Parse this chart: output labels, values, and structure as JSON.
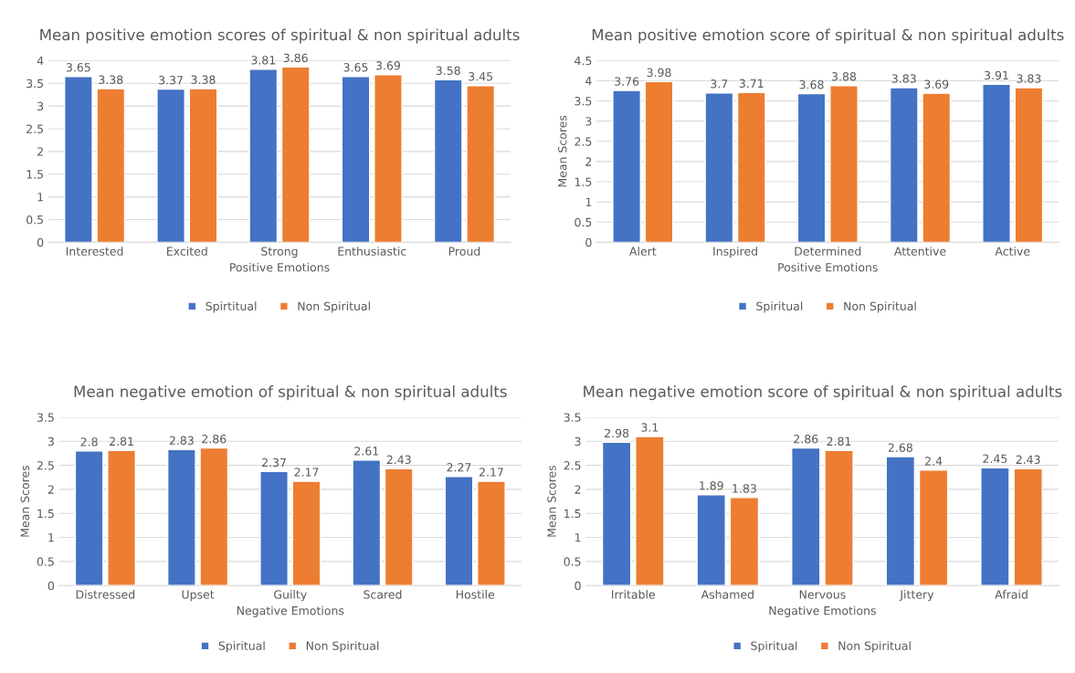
{
  "chart_data": [
    {
      "type": "bar",
      "title": "Mean positive emotion scores of spiritual & non spiritual adults",
      "xlabel": "Positive Emotions",
      "categories": [
        "Interested",
        "Excited",
        "Strong",
        "Enthusiastic",
        "Proud"
      ],
      "series": [
        {
          "name": "Spirtitual",
          "color": "#4472c4",
          "values": [
            3.65,
            3.37,
            3.81,
            3.65,
            3.58
          ]
        },
        {
          "name": "Non Spiritual",
          "color": "#ed7d31",
          "values": [
            3.38,
            3.38,
            3.86,
            3.69,
            3.45
          ]
        }
      ],
      "ylim": [
        0,
        4
      ],
      "yticks": [
        0,
        0.5,
        1,
        1.5,
        2,
        2.5,
        3,
        3.5,
        4
      ],
      "grid": "y",
      "legend": "bottom",
      "data_labels": true
    },
    {
      "type": "bar",
      "title": "Mean positive emotion score of spiritual & non spiritual adults",
      "xlabel": "Positive Emotions",
      "ylabel": "Mean Scores",
      "categories": [
        "Alert",
        "Inspired",
        "Determined",
        "Attentive",
        "Active"
      ],
      "series": [
        {
          "name": "Spiritual",
          "color": "#4472c4",
          "values": [
            3.76,
            3.7,
            3.68,
            3.83,
            3.91
          ]
        },
        {
          "name": "Non Spiritual",
          "color": "#ed7d31",
          "values": [
            3.98,
            3.71,
            3.88,
            3.69,
            3.83
          ]
        }
      ],
      "ylim": [
        0,
        4.5
      ],
      "yticks": [
        0,
        0.5,
        1,
        1.5,
        2,
        2.5,
        3,
        3.5,
        4,
        4.5
      ],
      "grid": "y",
      "legend": "bottom",
      "data_labels": true
    },
    {
      "type": "bar",
      "title": "Mean negative emotion of spiritual & non spiritual adults",
      "xlabel": "Negative Emotions",
      "ylabel": "Mean Scores",
      "categories": [
        "Distressed",
        "Upset",
        "Guilty",
        "Scared",
        "Hostile"
      ],
      "series": [
        {
          "name": "Spiritual",
          "color": "#4472c4",
          "values": [
            2.8,
            2.83,
            2.37,
            2.61,
            2.27
          ]
        },
        {
          "name": "Non Spiritual",
          "color": "#ed7d31",
          "values": [
            2.81,
            2.86,
            2.17,
            2.43,
            2.17
          ]
        }
      ],
      "ylim": [
        0,
        3.5
      ],
      "yticks": [
        0,
        0.5,
        1,
        1.5,
        2,
        2.5,
        3,
        3.5
      ],
      "grid": "y",
      "legend": "bottom",
      "data_labels": true
    },
    {
      "type": "bar",
      "title": "Mean negative emotion score of spiritual & non spiritual adults",
      "xlabel": "Negative Emotions",
      "ylabel": "Mean Scores",
      "categories": [
        "Irritable",
        "Ashamed",
        "Nervous",
        "Jittery",
        "Afraid"
      ],
      "series": [
        {
          "name": "Spiritual",
          "color": "#4472c4",
          "values": [
            2.98,
            1.89,
            2.86,
            2.68,
            2.45
          ]
        },
        {
          "name": "Non Spiritual",
          "color": "#ed7d31",
          "values": [
            3.1,
            1.83,
            2.81,
            2.4,
            2.43
          ]
        }
      ],
      "ylim": [
        0,
        3.5
      ],
      "yticks": [
        0,
        0.5,
        1,
        1.5,
        2,
        2.5,
        3,
        3.5
      ],
      "grid": "y",
      "legend": "bottom",
      "data_labels": true
    }
  ]
}
